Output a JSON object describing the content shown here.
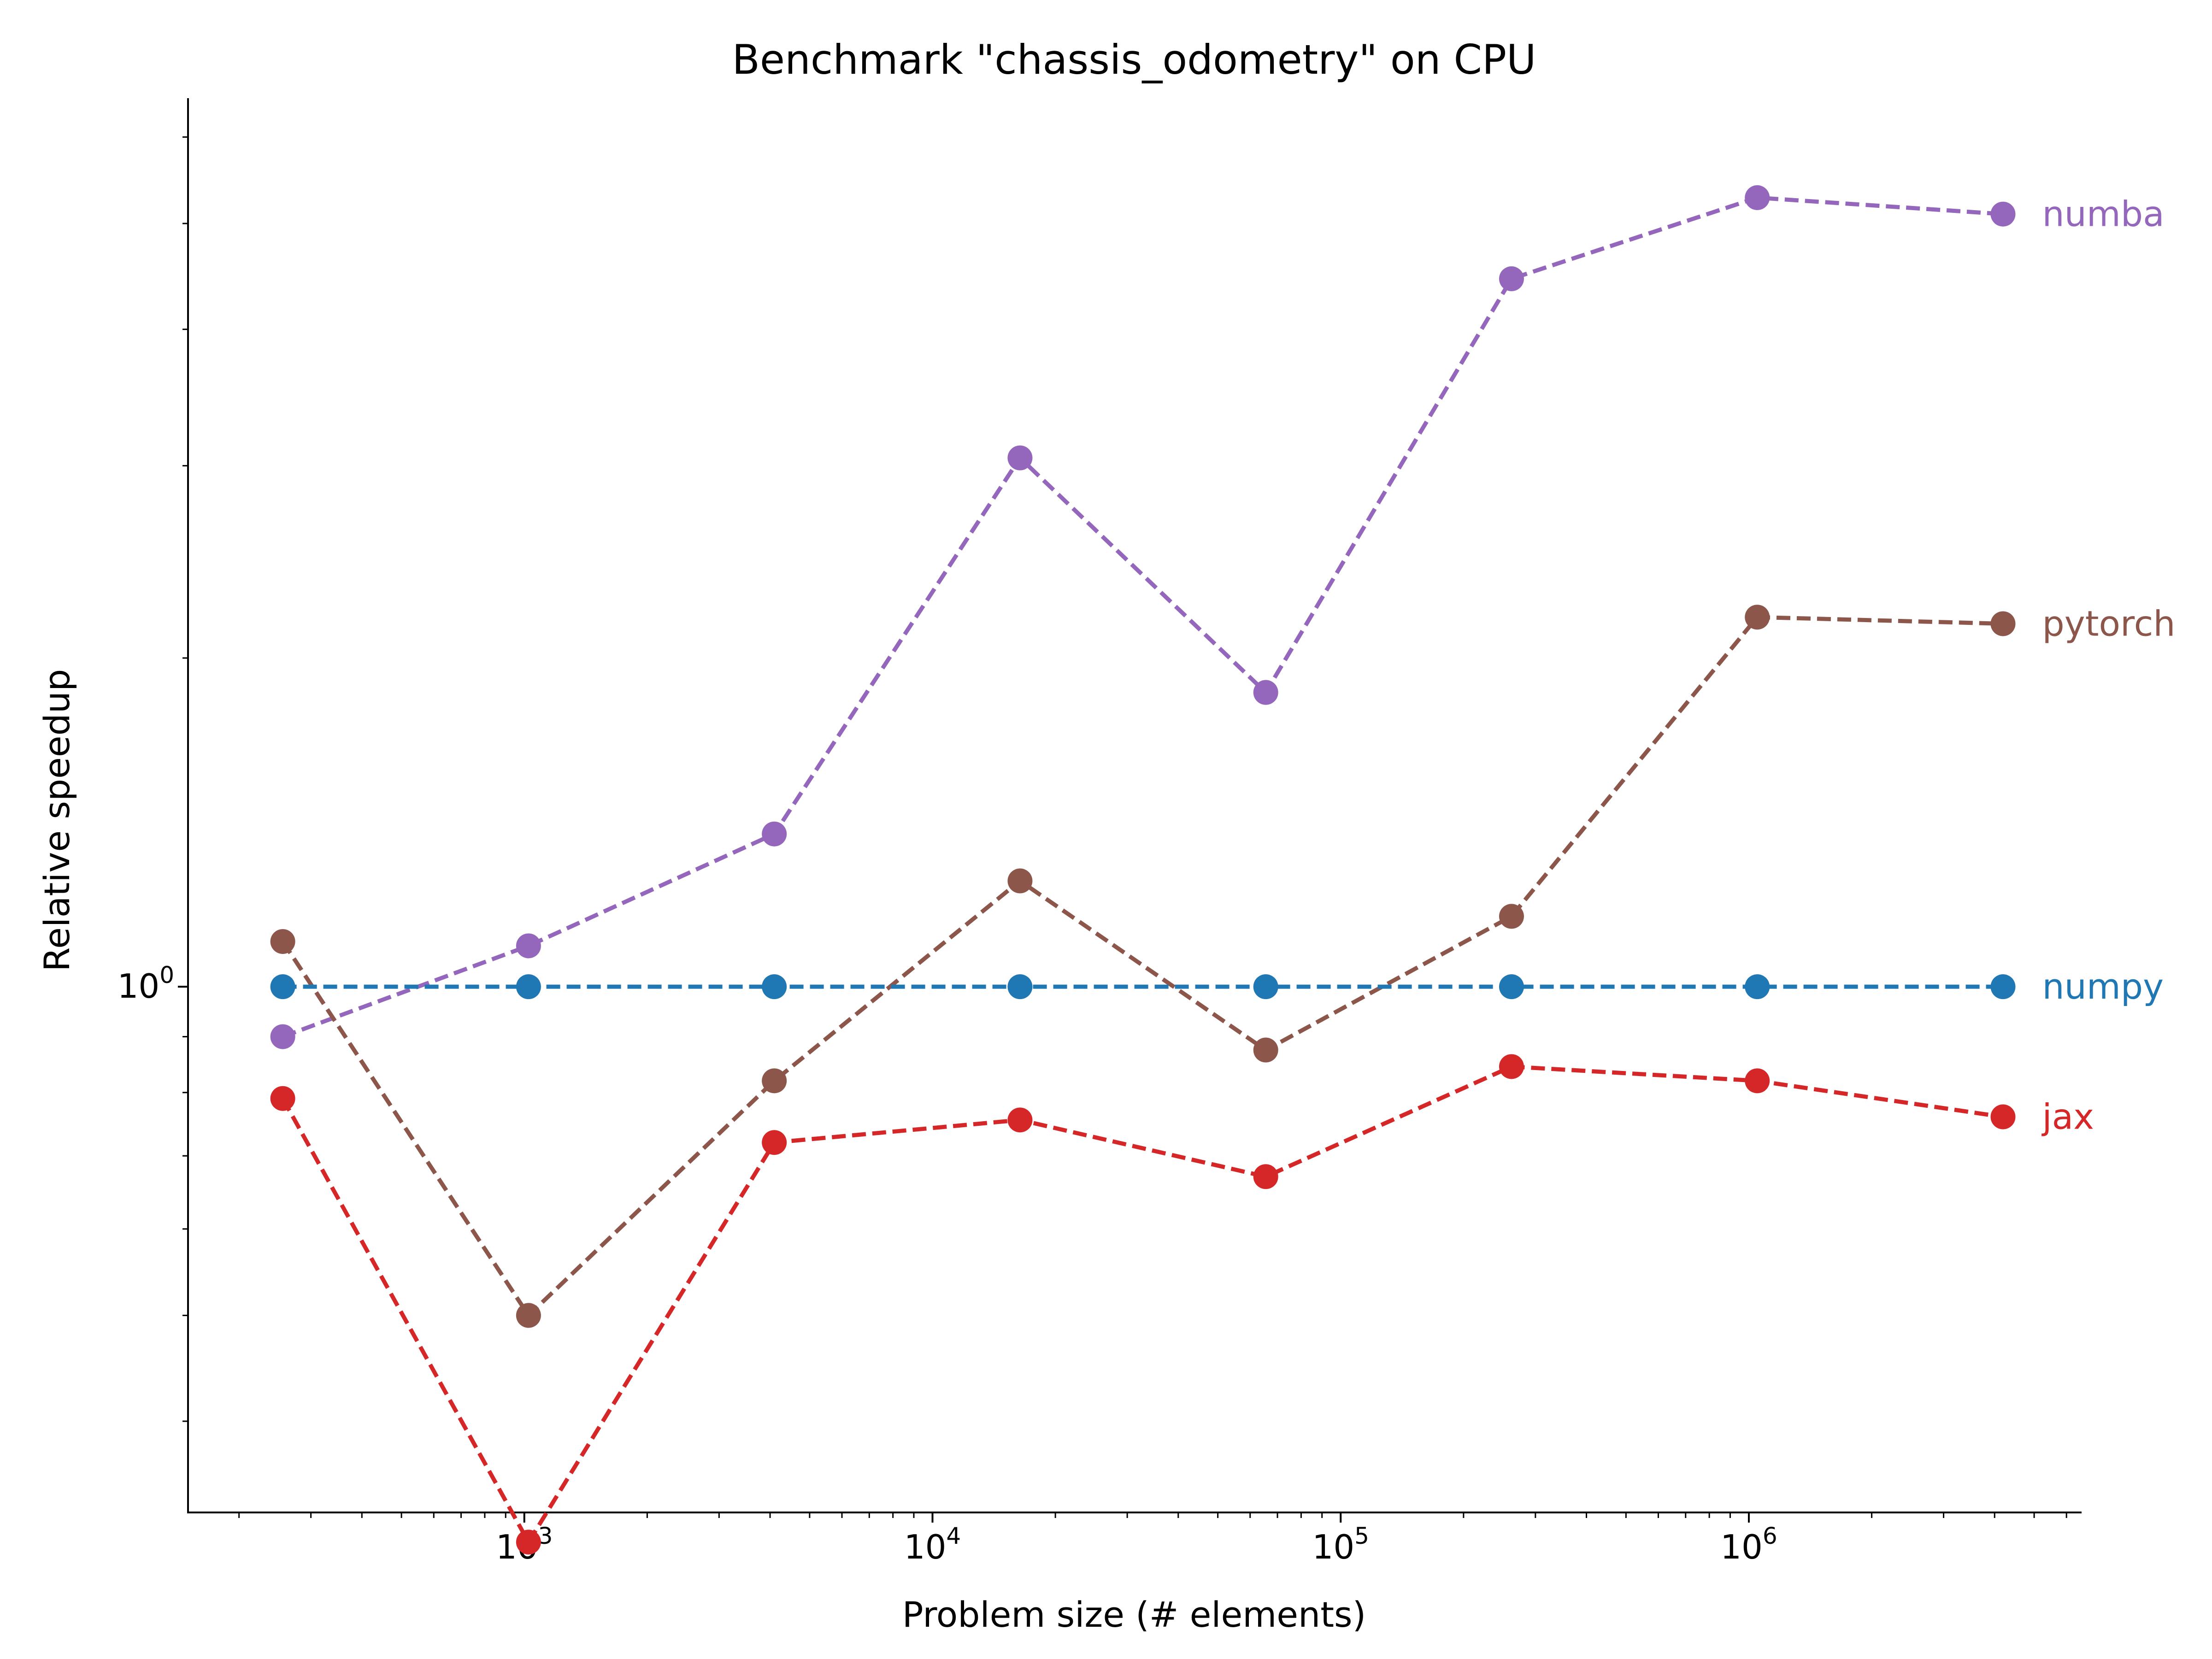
{
  "chart_data": {
    "type": "line",
    "title": "Benchmark \"chassis_odometry\" on CPU",
    "xlabel": "Problem size (# elements)",
    "ylabel": "Relative speedup",
    "x_scale": "log",
    "y_scale": "log",
    "x_ticks": [
      {
        "value": 1000,
        "base": "10",
        "exp": "3"
      },
      {
        "value": 10000,
        "base": "10",
        "exp": "4"
      },
      {
        "value": 100000,
        "base": "10",
        "exp": "5"
      },
      {
        "value": 1000000,
        "base": "10",
        "exp": "6"
      }
    ],
    "y_ticks": [
      {
        "value": 1,
        "base": "10",
        "exp": "0"
      }
    ],
    "xlim": [
      150,
      6500000
    ],
    "ylim": [
      0.33,
      6.5
    ],
    "grid": false,
    "legend": "inline labels at right end of each series",
    "x": [
      256,
      1024,
      4096,
      16384,
      65536,
      262144,
      1048576,
      4194304
    ],
    "series": [
      {
        "name": "numba",
        "color": "#9467bd",
        "values": [
          0.9,
          1.09,
          1.38,
          3.05,
          1.86,
          4.45,
          5.28,
          5.1
        ]
      },
      {
        "name": "pytorch",
        "color": "#8c564b",
        "values": [
          1.1,
          0.5,
          0.82,
          1.25,
          0.875,
          1.16,
          2.18,
          2.15
        ]
      },
      {
        "name": "numpy",
        "color": "#1f77b4",
        "values": [
          1.0,
          1.0,
          1.0,
          1.0,
          1.0,
          1.0,
          1.0,
          1.0
        ]
      },
      {
        "name": "jax",
        "color": "#d62728",
        "values": [
          0.79,
          0.31,
          0.72,
          0.755,
          0.67,
          0.845,
          0.82,
          0.76
        ]
      }
    ]
  }
}
